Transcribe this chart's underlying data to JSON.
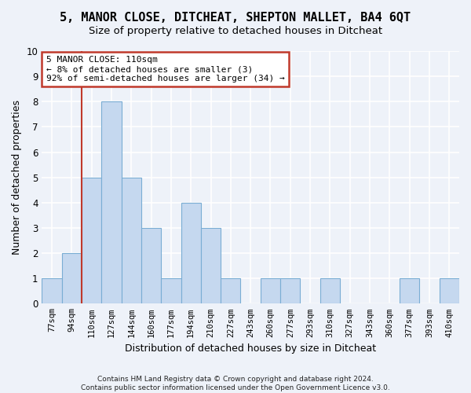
{
  "title": "5, MANOR CLOSE, DITCHEAT, SHEPTON MALLET, BA4 6QT",
  "subtitle": "Size of property relative to detached houses in Ditcheat",
  "xlabel": "Distribution of detached houses by size in Ditcheat",
  "ylabel": "Number of detached properties",
  "bin_edges": [
    68.5,
    85.5,
    102.5,
    119.5,
    136.5,
    153.5,
    170.5,
    187.5,
    204.5,
    221.5,
    238.5,
    255.5,
    272.5,
    289.5,
    306.5,
    323.5,
    340.5,
    357.5,
    374.5,
    391.5,
    408.5,
    425.5
  ],
  "bin_labels": [
    "77sqm",
    "94sqm",
    "110sqm",
    "127sqm",
    "144sqm",
    "160sqm",
    "177sqm",
    "194sqm",
    "210sqm",
    "227sqm",
    "243sqm",
    "260sqm",
    "277sqm",
    "293sqm",
    "310sqm",
    "327sqm",
    "343sqm",
    "360sqm",
    "377sqm",
    "393sqm",
    "410sqm"
  ],
  "values": [
    1,
    2,
    5,
    8,
    5,
    3,
    1,
    4,
    3,
    1,
    0,
    1,
    1,
    0,
    1,
    0,
    0,
    0,
    1,
    0,
    1
  ],
  "bar_facecolor": "#c5d8ef",
  "bar_edgecolor": "#7aadd4",
  "vline_pos": 102.5,
  "vline_color": "#c0392b",
  "annotation_text": "5 MANOR CLOSE: 110sqm\n← 8% of detached houses are smaller (3)\n92% of semi-detached houses are larger (34) →",
  "annotation_box_facecolor": "#ffffff",
  "annotation_box_edgecolor": "#c0392b",
  "ylim": [
    0,
    10
  ],
  "yticks": [
    0,
    1,
    2,
    3,
    4,
    5,
    6,
    7,
    8,
    9,
    10
  ],
  "footer": "Contains HM Land Registry data © Crown copyright and database right 2024.\nContains public sector information licensed under the Open Government Licence v3.0.",
  "bg_color": "#eef2f9",
  "grid_color": "#ffffff",
  "title_fontsize": 11,
  "subtitle_fontsize": 9.5,
  "xlabel_fontsize": 9,
  "ylabel_fontsize": 9,
  "tick_fontsize": 7.5,
  "annotation_fontsize": 8,
  "footer_fontsize": 6.5
}
